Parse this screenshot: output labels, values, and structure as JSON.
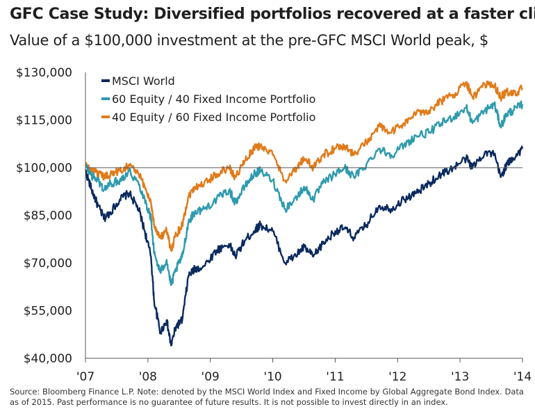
{
  "header": {
    "title": "GFC Case Study: Diversified portfolios recovered at a faster clip",
    "subtitle": "Value of a $100,000 investment at the pre-GFC MSCI World peak, $"
  },
  "footer": {
    "source": "Source: Bloomberg Finance L.P. Note: denoted by the MSCI World Index and Fixed Income by Global Aggregate Bond Index. Data as of 2015. Past performance is no guarantee of future results. It is not possible to invest directly in an index."
  },
  "colors": {
    "msci": "#0b2a5e",
    "p6040": "#2e9aae",
    "p4060": "#e07b1a",
    "axis": "#555555"
  },
  "chart_data": {
    "type": "line",
    "title": "GFC Case Study: Diversified portfolios recovered at a faster clip",
    "subtitle": "Value of a $100,000 investment at the pre-GFC MSCI World peak, $",
    "xlabel": "",
    "ylabel": "",
    "xlim": [
      2007.8,
      2014.8
    ],
    "ylim": [
      40000,
      130000
    ],
    "y_ticks": [
      40000,
      55000,
      70000,
      85000,
      100000,
      115000,
      130000
    ],
    "y_tick_labels": [
      "$40,000",
      "$55,000",
      "$70,000",
      "$85,000",
      "$100,000",
      "$115,000",
      "$130,000"
    ],
    "x_ticks": [
      2007.8,
      2008.8,
      2009.8,
      2010.8,
      2011.8,
      2012.8,
      2013.8,
      2014.8
    ],
    "x_tick_labels": [
      "'07",
      "'08",
      "'09",
      "'10",
      "'11",
      "'12",
      "'13",
      "'14"
    ],
    "reference_line": 100000,
    "grid": false,
    "legend_position": "top-left",
    "series": [
      {
        "name": "MSCI World",
        "color_key": "msci",
        "x": [
          2007.8,
          2007.9,
          2008.0,
          2008.1,
          2008.2,
          2008.35,
          2008.5,
          2008.65,
          2008.75,
          2008.85,
          2008.9,
          2009.0,
          2009.1,
          2009.17,
          2009.25,
          2009.35,
          2009.45,
          2009.55,
          2009.7,
          2009.9,
          2010.1,
          2010.2,
          2010.35,
          2010.5,
          2010.6,
          2010.8,
          2011.0,
          2011.2,
          2011.3,
          2011.45,
          2011.6,
          2011.8,
          2011.95,
          2012.1,
          2012.3,
          2012.5,
          2012.7,
          2012.9,
          2013.1,
          2013.3,
          2013.5,
          2013.7,
          2013.9,
          2014.0,
          2014.2,
          2014.35,
          2014.45,
          2014.55,
          2014.65,
          2014.8
        ],
        "y": [
          99000,
          93000,
          88000,
          84000,
          86000,
          90000,
          92000,
          87000,
          80000,
          72000,
          58000,
          48000,
          52000,
          44000,
          50000,
          52000,
          66000,
          68000,
          69000,
          74000,
          76000,
          72000,
          77000,
          80000,
          82000,
          80000,
          70000,
          73000,
          75000,
          72000,
          76000,
          80000,
          81000,
          78000,
          82000,
          88000,
          87000,
          90000,
          92000,
          95000,
          98000,
          100000,
          103000,
          100000,
          105000,
          104000,
          97000,
          101000,
          103000,
          106000
        ]
      },
      {
        "name": "60 Equity / 40 Fixed Income Portfolio",
        "color_key": "p6040",
        "x": [
          2007.8,
          2007.9,
          2008.0,
          2008.1,
          2008.2,
          2008.35,
          2008.5,
          2008.65,
          2008.75,
          2008.85,
          2008.9,
          2009.0,
          2009.1,
          2009.17,
          2009.25,
          2009.35,
          2009.45,
          2009.55,
          2009.7,
          2009.9,
          2010.1,
          2010.2,
          2010.35,
          2010.5,
          2010.6,
          2010.8,
          2011.0,
          2011.2,
          2011.3,
          2011.45,
          2011.6,
          2011.8,
          2011.95,
          2012.1,
          2012.3,
          2012.5,
          2012.7,
          2012.9,
          2013.1,
          2013.3,
          2013.5,
          2013.7,
          2013.9,
          2014.0,
          2014.2,
          2014.35,
          2014.45,
          2014.55,
          2014.65,
          2014.8
        ],
        "y": [
          100500,
          97500,
          96000,
          93000,
          95000,
          96000,
          99000,
          95000,
          90000,
          84000,
          73000,
          67000,
          71000,
          63000,
          68000,
          72000,
          83000,
          86000,
          87000,
          90000,
          93000,
          89000,
          94000,
          98000,
          99000,
          96000,
          87000,
          91000,
          94000,
          90000,
          95000,
          98000,
          100000,
          97000,
          101000,
          106000,
          104000,
          107000,
          110000,
          111000,
          114000,
          116000,
          119000,
          114000,
          118000,
          120000,
          113000,
          117000,
          118000,
          120000
        ]
      },
      {
        "name": "40 Equity / 60 Fixed Income Portfolio",
        "color_key": "p4060",
        "x": [
          2007.8,
          2007.9,
          2008.0,
          2008.1,
          2008.2,
          2008.35,
          2008.5,
          2008.65,
          2008.75,
          2008.85,
          2008.9,
          2009.0,
          2009.1,
          2009.17,
          2009.25,
          2009.35,
          2009.45,
          2009.55,
          2009.7,
          2009.9,
          2010.1,
          2010.2,
          2010.35,
          2010.5,
          2010.6,
          2010.8,
          2011.0,
          2011.2,
          2011.3,
          2011.45,
          2011.6,
          2011.8,
          2011.95,
          2012.1,
          2012.3,
          2012.5,
          2012.7,
          2012.9,
          2013.1,
          2013.3,
          2013.5,
          2013.7,
          2013.9,
          2014.0,
          2014.2,
          2014.35,
          2014.45,
          2014.55,
          2014.65,
          2014.8
        ],
        "y": [
          101000,
          99000,
          98000,
          97000,
          98000,
          99000,
          101000,
          98000,
          94000,
          89000,
          82000,
          78000,
          80000,
          74000,
          79000,
          82000,
          91000,
          94000,
          95000,
          98000,
          100000,
          97000,
          102000,
          106000,
          107000,
          104000,
          96000,
          100000,
          103000,
          100000,
          104000,
          106000,
          107000,
          104000,
          108000,
          113000,
          111000,
          114000,
          117000,
          118000,
          121000,
          123000,
          127000,
          122000,
          126000,
          126000,
          122000,
          124000,
          123000,
          125000
        ]
      }
    ]
  }
}
